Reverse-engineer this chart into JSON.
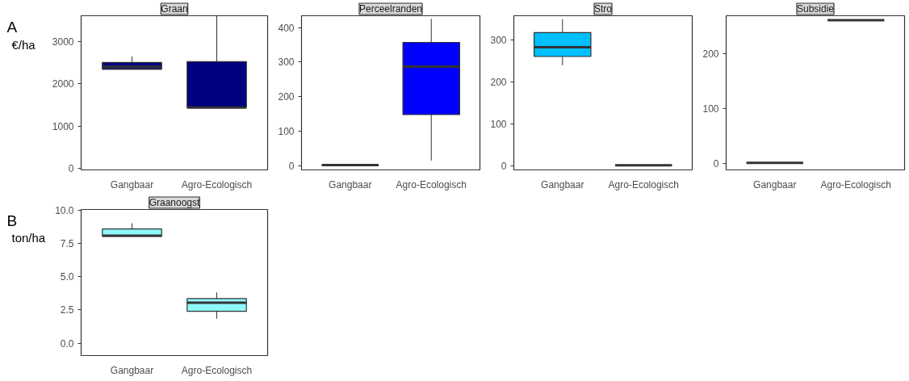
{
  "chart_data": [
    {
      "type": "box",
      "title": "Graan",
      "annotations": [
        "A"
      ],
      "ylabel": "€/ha",
      "categories": [
        "Gangbaar",
        "Agro-Ecologisch"
      ],
      "color": "#000080",
      "ylim": [
        -30,
        3600
      ],
      "yticks": [
        0,
        1000,
        2000,
        3000
      ],
      "grid": false,
      "boxes": [
        {
          "low": 2340,
          "q1": 2340,
          "median": 2400,
          "q3": 2500,
          "high": 2640
        },
        {
          "low": 1440,
          "q1": 1440,
          "median": 1440,
          "q3": 2520,
          "high": 3590
        }
      ]
    },
    {
      "type": "box",
      "title": "Perceelranden",
      "categories": [
        "Gangbaar",
        "Agro-Ecologisch"
      ],
      "color": "#0000ff",
      "ylim": [
        -12,
        434
      ],
      "yticks": [
        0,
        100,
        200,
        300,
        400
      ],
      "grid": false,
      "boxes": [
        {
          "low": 2,
          "q1": 2,
          "median": 2,
          "q3": 2,
          "high": 2
        },
        {
          "low": 15,
          "q1": 148,
          "median": 287,
          "q3": 357,
          "high": 425
        }
      ]
    },
    {
      "type": "box",
      "title": "Stro",
      "categories": [
        "Gangbaar",
        "Agro-Ecologisch"
      ],
      "color": "#00bfff",
      "ylim": [
        -9,
        358
      ],
      "yticks": [
        0,
        100,
        200,
        300
      ],
      "grid": false,
      "boxes": [
        {
          "low": 240,
          "q1": 261,
          "median": 283,
          "q3": 318,
          "high": 350
        },
        {
          "low": 2,
          "q1": 2,
          "median": 2,
          "q3": 2,
          "high": 2
        }
      ]
    },
    {
      "type": "box",
      "title": "Subsidie",
      "categories": [
        "Gangbaar",
        "Agro-Ecologisch"
      ],
      "ylim": [
        -12,
        270
      ],
      "yticks": [
        0,
        100,
        200
      ],
      "grid": false,
      "boxes": [
        {
          "low": 1,
          "q1": 1,
          "median": 1,
          "q3": 1,
          "high": 1
        },
        {
          "low": 262,
          "q1": 262,
          "median": 262,
          "q3": 262,
          "high": 262
        }
      ]
    },
    {
      "type": "box",
      "title": "Graanoogst",
      "annotations": [
        "B"
      ],
      "ylabel": "ton/ha",
      "categories": [
        "Gangbaar",
        "Agro-Ecologisch"
      ],
      "color": "#8ff8f8",
      "ylim": [
        -0.94,
        10.07
      ],
      "yticks": [
        {
          "value": 0,
          "label": "0.0"
        },
        {
          "value": 2.5,
          "label": "2.5"
        },
        {
          "value": 5,
          "label": "5.0"
        },
        {
          "value": 7.5,
          "label": "7.5"
        },
        {
          "value": 10,
          "label": "10.0"
        }
      ],
      "grid": false,
      "boxes": [
        {
          "low": 8.05,
          "q1": 8.05,
          "median": 8.1,
          "q3": 8.6,
          "high": 9.03
        },
        {
          "low": 1.84,
          "q1": 2.4,
          "median": 3.05,
          "q3": 3.35,
          "high": 3.82
        }
      ]
    }
  ]
}
